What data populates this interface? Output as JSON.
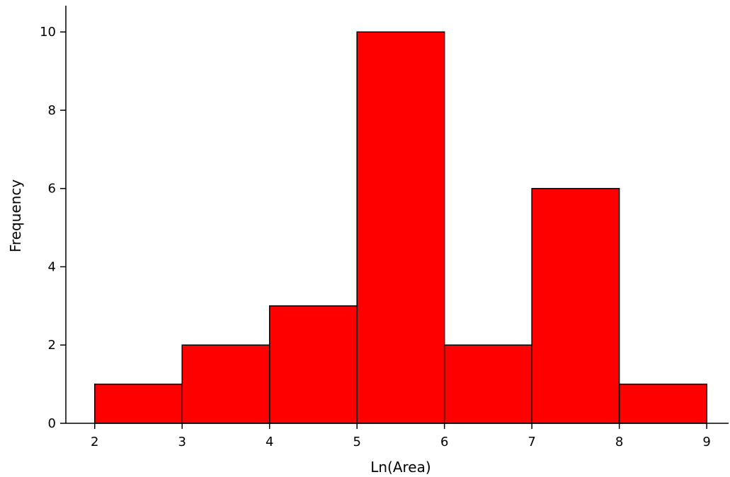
{
  "chart_data": {
    "type": "bar",
    "title": "",
    "xlabel": "Ln(Area)",
    "ylabel": "Frequency",
    "bins": [
      {
        "x_start": 2,
        "x_end": 3,
        "value": 1
      },
      {
        "x_start": 3,
        "x_end": 4,
        "value": 2
      },
      {
        "x_start": 4,
        "x_end": 5,
        "value": 3
      },
      {
        "x_start": 5,
        "x_end": 6,
        "value": 10
      },
      {
        "x_start": 6,
        "x_end": 7,
        "value": 2
      },
      {
        "x_start": 7,
        "x_end": 8,
        "value": 6
      },
      {
        "x_start": 8,
        "x_end": 9,
        "value": 1
      }
    ],
    "x_ticks": [
      "2",
      "3",
      "4",
      "5",
      "6",
      "7",
      "8",
      "9"
    ],
    "y_ticks": [
      "0",
      "2",
      "4",
      "6",
      "8",
      "10"
    ],
    "xlim": [
      1.67,
      9.25
    ],
    "ylim": [
      0,
      10.6
    ],
    "grid": false,
    "colors": {
      "bar_fill": "#ff0000",
      "bar_stroke": "#000000"
    }
  }
}
